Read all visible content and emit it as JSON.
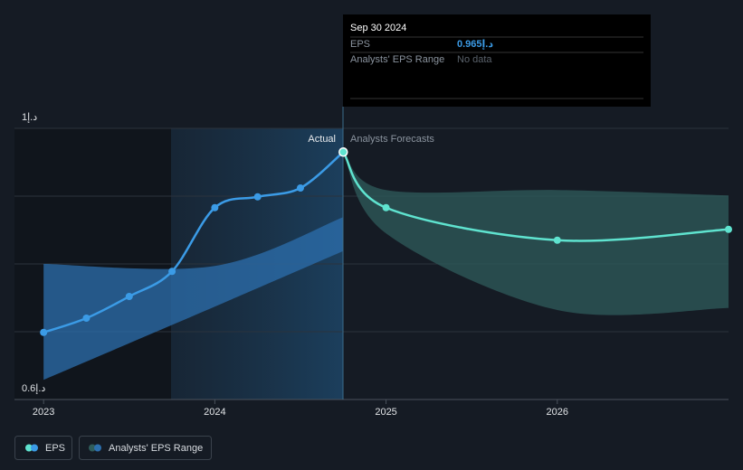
{
  "chart_data": {
    "type": "line",
    "xlim": [
      2022.83,
      2027
    ],
    "xticks": [
      2023,
      2024,
      2025,
      2026
    ],
    "ylim": [
      0.6,
      1
    ],
    "yticks": [
      {
        "value": 0.6,
        "label": "0.6د.إ"
      },
      {
        "value": 1,
        "label": "1د.إ"
      }
    ],
    "ygrid": [
      0.6,
      0.7,
      0.8,
      0.9,
      1
    ],
    "annotations": {
      "actual": "Actual",
      "forecast": "Analysts Forecasts"
    },
    "eps": {
      "name": "EPS",
      "color": "#3b9be6",
      "x": [
        2023,
        2023.25,
        2023.5,
        2023.75,
        2024,
        2024.25,
        2024.5,
        2024.75
      ],
      "values": [
        0.699,
        0.72,
        0.752,
        0.789,
        0.883,
        0.899,
        0.912,
        0.965
      ]
    },
    "eps_forecast": {
      "color": "#5fe3cf",
      "x": [
        2025,
        2026,
        2027
      ],
      "values": [
        0.883,
        0.835,
        0.851
      ]
    },
    "range": {
      "name": "Analysts' EPS Range",
      "color": "#2c6fae",
      "forecast_color": "#2f5c5b",
      "past": {
        "x": [
          2023,
          2024,
          2024.75
        ],
        "upper": [
          0.8,
          0.797,
          0.869
        ],
        "lower": [
          0.629,
          0.737,
          0.819
        ]
      },
      "forecast": {
        "x": [
          2025,
          2026,
          2027
        ],
        "upper": [
          0.909,
          0.909,
          0.901
        ],
        "lower": [
          0.845,
          0.732,
          0.735
        ]
      }
    },
    "tooltip": {
      "date": "Sep 30 2024",
      "rows": [
        {
          "label": "EPS",
          "value": "0.965د.إ"
        },
        {
          "label": "Analysts' EPS Range",
          "value": "No data"
        }
      ]
    }
  }
}
